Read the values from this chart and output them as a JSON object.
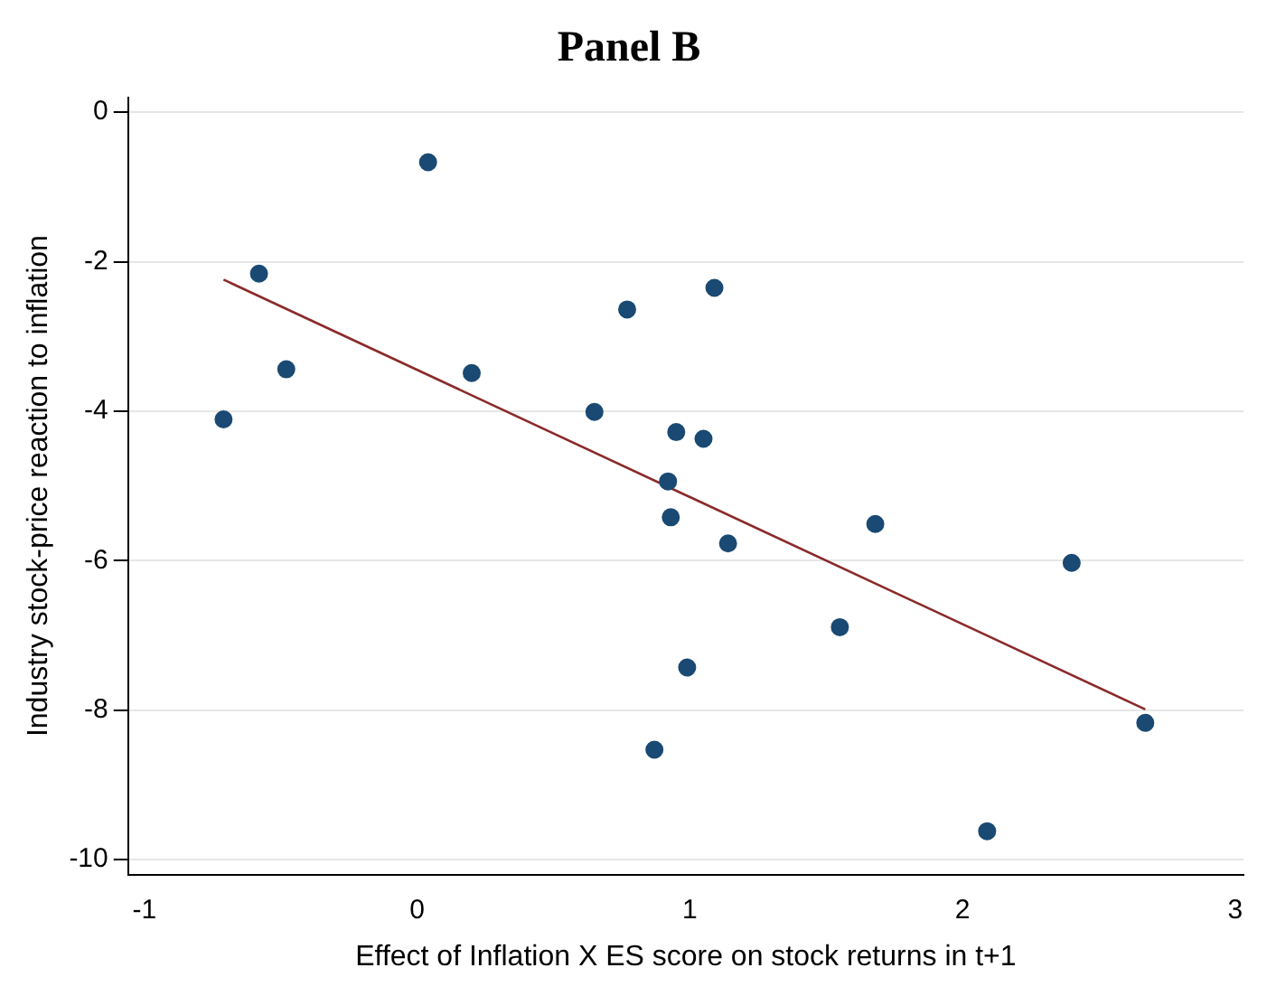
{
  "chart_data": {
    "type": "scatter",
    "title": "Panel B",
    "xlabel": "Effect of Inflation X ES score on stock returns in t+1",
    "ylabel": "Industry stock-price reaction to inflation",
    "xlim": [
      -1.06,
      3.03
    ],
    "xticks": [
      -1,
      0,
      1,
      2,
      3
    ],
    "ylim": [
      -10.2,
      0.2
    ],
    "yticks": [
      0,
      -2,
      -4,
      -6,
      -8,
      -10
    ],
    "grid": "y",
    "legend": false,
    "series": [
      {
        "marker": "circle",
        "color": "#1a4a73",
        "x": [
          -0.71,
          -0.58,
          -0.48,
          0.04,
          0.2,
          0.65,
          0.77,
          0.95,
          1.05,
          1.09,
          0.92,
          0.93,
          1.14,
          0.99,
          0.87,
          1.55,
          1.68,
          2.4,
          2.67,
          2.09
        ],
        "values": [
          -4.11,
          -2.16,
          -3.44,
          -0.67,
          -3.49,
          -4.01,
          -2.64,
          -4.28,
          -4.37,
          -2.35,
          -4.94,
          -5.42,
          -5.77,
          -7.43,
          -8.53,
          -6.89,
          -5.51,
          -6.03,
          -8.17,
          -9.62
        ]
      },
      {
        "type": "line",
        "marker": "none",
        "color": "#8b2a2a",
        "x": [
          -0.71,
          2.67
        ],
        "values": [
          -2.24,
          -7.99
        ]
      }
    ]
  }
}
